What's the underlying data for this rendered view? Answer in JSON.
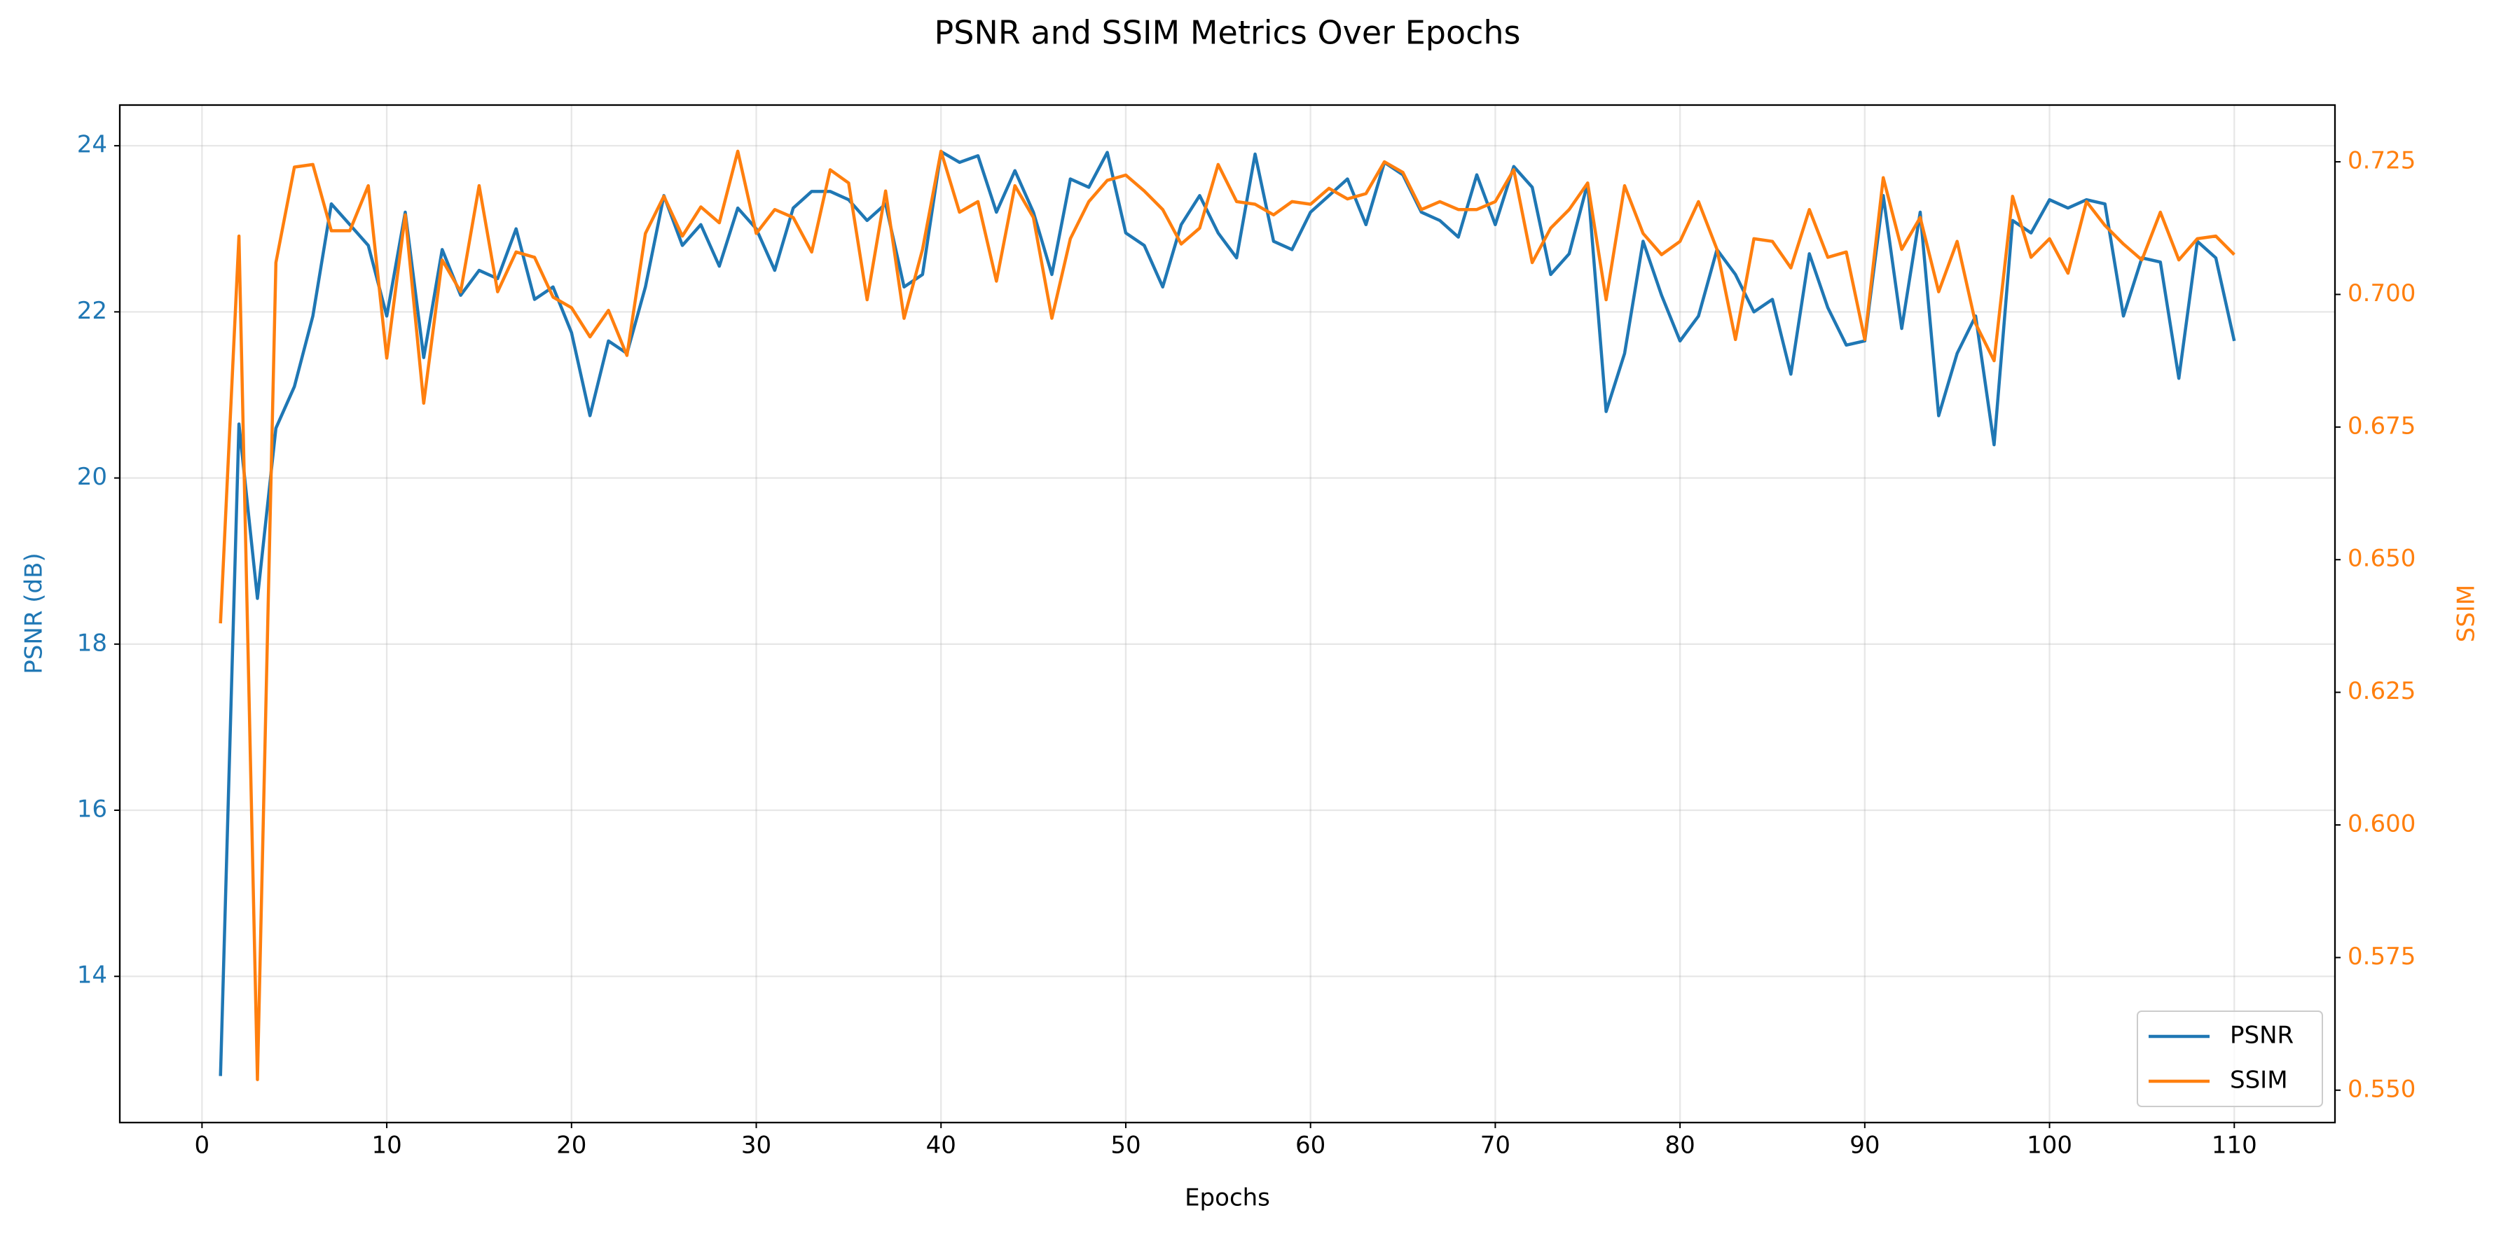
{
  "chart_data": {
    "type": "line",
    "title": "PSNR and SSIM Metrics Over Epochs",
    "xlabel": "Epochs",
    "ylabel": "PSNR (dB)",
    "y2label": "SSIM",
    "x": [
      1,
      2,
      3,
      4,
      5,
      6,
      7,
      8,
      9,
      10,
      11,
      12,
      13,
      14,
      15,
      16,
      17,
      18,
      19,
      20,
      21,
      22,
      23,
      24,
      25,
      26,
      27,
      28,
      29,
      30,
      31,
      32,
      33,
      34,
      35,
      36,
      37,
      38,
      39,
      40,
      41,
      42,
      43,
      44,
      45,
      46,
      47,
      48,
      49,
      50,
      51,
      52,
      53,
      54,
      55,
      56,
      57,
      58,
      59,
      60,
      61,
      62,
      63,
      64,
      65,
      66,
      67,
      68,
      69,
      70,
      71,
      72,
      73,
      74,
      75,
      76,
      77,
      78,
      79,
      80,
      81,
      82,
      83,
      84,
      85,
      86,
      87,
      88,
      89,
      90,
      91,
      92,
      93,
      94,
      95,
      96,
      97,
      98,
      99,
      100,
      101,
      102,
      103,
      104,
      105,
      106,
      107,
      108,
      109,
      110
    ],
    "series": [
      {
        "name": "PSNR",
        "color": "#1f77b4",
        "values": [
          12.8,
          20.65,
          18.55,
          20.6,
          21.1,
          21.95,
          23.3,
          23.05,
          22.8,
          21.95,
          23.2,
          21.45,
          22.75,
          22.2,
          22.5,
          22.4,
          23.0,
          22.15,
          22.3,
          21.75,
          20.75,
          21.65,
          21.5,
          22.3,
          23.4,
          22.8,
          23.05,
          22.55,
          23.25,
          23.0,
          22.5,
          23.25,
          23.45,
          23.45,
          23.35,
          23.1,
          23.3,
          22.3,
          22.45,
          23.93,
          23.8,
          23.88,
          23.2,
          23.7,
          23.2,
          22.45,
          23.6,
          23.5,
          23.92,
          22.95,
          22.8,
          22.3,
          23.05,
          23.4,
          22.95,
          22.65,
          23.9,
          22.85,
          22.75,
          23.2,
          23.4,
          23.6,
          23.05,
          23.8,
          23.65,
          23.2,
          23.1,
          22.9,
          23.65,
          23.05,
          23.75,
          23.5,
          22.45,
          22.7,
          23.55,
          20.8,
          21.5,
          22.85,
          22.2,
          21.65,
          21.95,
          22.75,
          22.45,
          22.0,
          22.15,
          21.25,
          22.7,
          22.05,
          21.6,
          21.65,
          23.4,
          21.8,
          23.2,
          20.75,
          21.5,
          21.95,
          20.4,
          23.1,
          22.95,
          23.35,
          23.25,
          23.35,
          23.3,
          21.95,
          22.65,
          22.6,
          21.2,
          22.85,
          22.65,
          21.65
        ]
      },
      {
        "name": "SSIM",
        "color": "#ff7f0e",
        "axis": "y2",
        "values": [
          0.638,
          0.711,
          0.552,
          0.706,
          0.724,
          0.7245,
          0.712,
          0.712,
          0.7205,
          0.688,
          0.715,
          0.6795,
          0.7065,
          0.7005,
          0.7205,
          0.7005,
          0.708,
          0.707,
          0.6995,
          0.6975,
          0.692,
          0.697,
          0.6885,
          0.7115,
          0.7185,
          0.711,
          0.7165,
          0.7135,
          0.727,
          0.7115,
          0.716,
          0.7145,
          0.708,
          0.7235,
          0.721,
          0.699,
          0.7195,
          0.6955,
          0.7085,
          0.727,
          0.7155,
          0.7175,
          0.7025,
          0.7205,
          0.7145,
          0.6955,
          0.7105,
          0.7175,
          0.7215,
          0.7225,
          0.7195,
          0.716,
          0.7095,
          0.7125,
          0.7245,
          0.7175,
          0.717,
          0.715,
          0.7175,
          0.717,
          0.72,
          0.718,
          0.719,
          0.725,
          0.723,
          0.716,
          0.7175,
          0.716,
          0.716,
          0.7175,
          0.7235,
          0.706,
          0.7125,
          0.716,
          0.721,
          0.699,
          0.7205,
          0.7115,
          0.7075,
          0.71,
          0.7175,
          0.7085,
          0.6915,
          0.7105,
          0.71,
          0.705,
          0.716,
          0.707,
          0.708,
          0.6915,
          0.722,
          0.7085,
          0.7145,
          0.7005,
          0.71,
          0.6945,
          0.6875,
          0.7185,
          0.707,
          0.7105,
          0.704,
          0.7175,
          0.713,
          0.7095,
          0.7065,
          0.7155,
          0.7065,
          0.7105,
          0.711,
          0.7075
        ]
      }
    ],
    "xlim": [
      -4.45,
      115.45
    ],
    "ylim": [
      12.24,
      24.49
    ],
    "y2lim": [
      0.5439,
      0.7357
    ],
    "xticks": [
      0,
      10,
      20,
      30,
      40,
      50,
      60,
      70,
      80,
      90,
      100,
      110
    ],
    "yticks": [
      14,
      16,
      18,
      20,
      22,
      24
    ],
    "y2ticks": [
      {
        "value": 0.55,
        "label": "0.550"
      },
      0.575,
      {
        "value": 0.6,
        "label": "0.600"
      },
      0.625,
      {
        "value": 0.65,
        "label": "0.650"
      },
      0.675,
      {
        "value": 0.7,
        "label": "0.700"
      },
      0.725
    ],
    "grid": true,
    "legend": "lower right"
  }
}
